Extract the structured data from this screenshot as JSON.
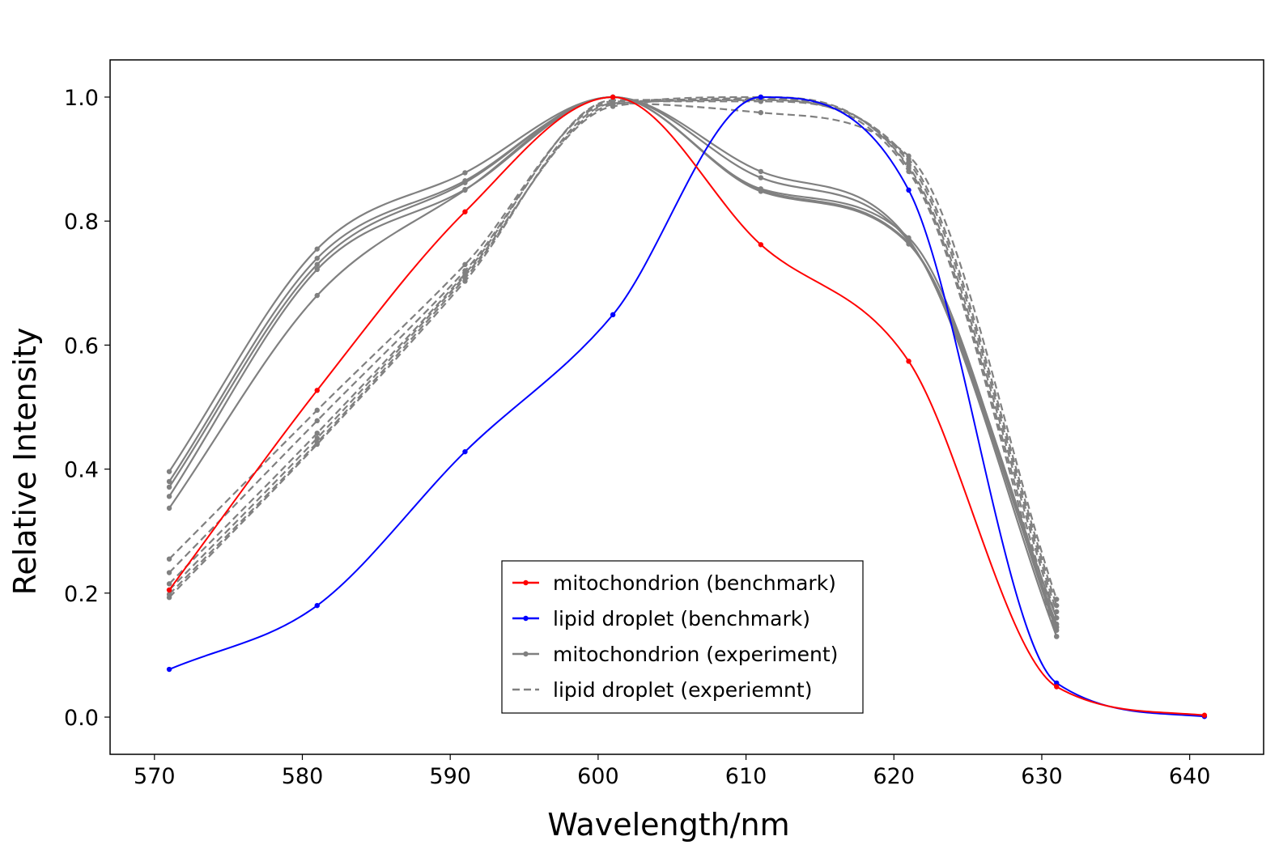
{
  "chart_data": {
    "type": "line",
    "title": "",
    "xlabel": "Wavelength/nm",
    "ylabel": "Relative Intensity",
    "xlim": [
      567,
      645
    ],
    "ylim": [
      -0.06,
      1.06
    ],
    "xticks": [
      "570",
      "580",
      "590",
      "600",
      "610",
      "620",
      "630",
      "640"
    ],
    "yticks": [
      "0.0",
      "0.2",
      "0.4",
      "0.6",
      "0.8",
      "1.0"
    ],
    "grid": false,
    "legend_position": "lower-center",
    "colors": {
      "mitochondrion_benchmark": "#ff0000",
      "lipid_benchmark": "#0000ff",
      "experiment": "#808080"
    },
    "series": [
      {
        "name": "mitochondrion (benchmark)",
        "color": "#ff0000",
        "style": "solid",
        "legend": true,
        "x": [
          571,
          581,
          591,
          601,
          611,
          621,
          631,
          641
        ],
        "y": [
          0.205,
          0.527,
          0.815,
          1.0,
          0.762,
          0.574,
          0.049,
          0.003
        ]
      },
      {
        "name": "lipid droplet (benchmark)",
        "color": "#0000ff",
        "style": "solid",
        "legend": true,
        "x": [
          571,
          581,
          591,
          601,
          611,
          621,
          631,
          641
        ],
        "y": [
          0.077,
          0.18,
          0.428,
          0.649,
          1.0,
          0.85,
          0.055,
          0.001
        ]
      },
      {
        "name": "mitochondrion (experiment)",
        "color": "#808080",
        "style": "solid",
        "legend": true,
        "x": [
          571,
          581,
          591,
          601,
          611,
          621,
          631
        ],
        "y": [
          0.396,
          0.755,
          0.878,
          1.0,
          0.88,
          0.77,
          0.13
        ]
      },
      {
        "color": "#808080",
        "style": "solid",
        "x": [
          571,
          581,
          591,
          601,
          611,
          621,
          631
        ],
        "y": [
          0.38,
          0.74,
          0.865,
          1.0,
          0.87,
          0.768,
          0.145
        ]
      },
      {
        "color": "#808080",
        "style": "solid",
        "x": [
          571,
          581,
          591,
          601,
          611,
          621,
          631
        ],
        "y": [
          0.371,
          0.73,
          0.862,
          1.0,
          0.852,
          0.773,
          0.14
        ]
      },
      {
        "color": "#808080",
        "style": "solid",
        "x": [
          571,
          581,
          591,
          601,
          611,
          621,
          631
        ],
        "y": [
          0.356,
          0.722,
          0.851,
          1.0,
          0.848,
          0.763,
          0.16
        ]
      },
      {
        "color": "#808080",
        "style": "solid",
        "x": [
          571,
          581,
          591,
          601,
          611,
          621,
          631
        ],
        "y": [
          0.337,
          0.68,
          0.85,
          1.0,
          0.85,
          0.765,
          0.15
        ]
      },
      {
        "name": "lipid droplet (experiemnt)",
        "color": "#808080",
        "style": "dashed",
        "legend": true,
        "x": [
          571,
          581,
          591,
          601,
          611,
          621,
          631
        ],
        "y": [
          0.255,
          0.495,
          0.73,
          0.99,
          0.975,
          0.905,
          0.19
        ]
      },
      {
        "color": "#808080",
        "style": "dashed",
        "x": [
          571,
          581,
          591,
          601,
          611,
          621,
          631
        ],
        "y": [
          0.233,
          0.478,
          0.72,
          0.993,
          0.993,
          0.9,
          0.18
        ]
      },
      {
        "color": "#808080",
        "style": "dashed",
        "x": [
          571,
          581,
          591,
          601,
          611,
          621,
          631
        ],
        "y": [
          0.215,
          0.458,
          0.715,
          0.995,
          0.996,
          0.895,
          0.17
        ]
      },
      {
        "color": "#808080",
        "style": "dashed",
        "x": [
          571,
          581,
          591,
          601,
          611,
          621,
          631
        ],
        "y": [
          0.205,
          0.45,
          0.712,
          0.985,
          0.998,
          0.888,
          0.16
        ]
      },
      {
        "color": "#808080",
        "style": "dashed",
        "x": [
          571,
          581,
          591,
          601,
          611,
          621,
          631
        ],
        "y": [
          0.198,
          0.443,
          0.708,
          0.988,
          1.0,
          0.885,
          0.145
        ]
      },
      {
        "color": "#808080",
        "style": "dashed",
        "x": [
          571,
          581,
          591,
          601,
          611,
          621,
          631
        ],
        "y": [
          0.193,
          0.44,
          0.703,
          0.99,
          0.995,
          0.88,
          0.13
        ]
      }
    ]
  }
}
